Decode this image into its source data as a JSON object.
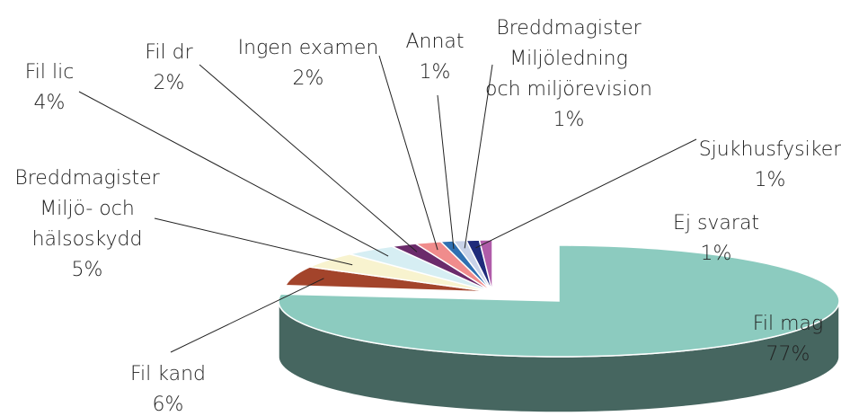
{
  "chart_data": {
    "type": "pie",
    "categories": [
      "Fil mag",
      "Fil kand",
      "Breddmagister\nMiljö- och\nhälsoskydd",
      "Fil lic",
      "Fil dr",
      "Ingen examen",
      "Annat",
      "Breddmagister\nMiljöledning\noch miljörevision",
      "Sjukhusfysiker",
      "Ej svarat"
    ],
    "values": [
      77,
      6,
      5,
      4,
      2,
      2,
      1,
      1,
      1,
      1
    ],
    "value_labels": [
      "77%",
      "6%",
      "5%",
      "4%",
      "2%",
      "2%",
      "1%",
      "1%",
      "1%",
      "1%"
    ],
    "colors": [
      "#8ccbbf",
      "#a3442b",
      "#f8f3cf",
      "#d6eef3",
      "#6b2b6b",
      "#f08c8c",
      "#2f70b1",
      "#c9d3e9",
      "#1f2b7b",
      "#b05ca9"
    ]
  }
}
